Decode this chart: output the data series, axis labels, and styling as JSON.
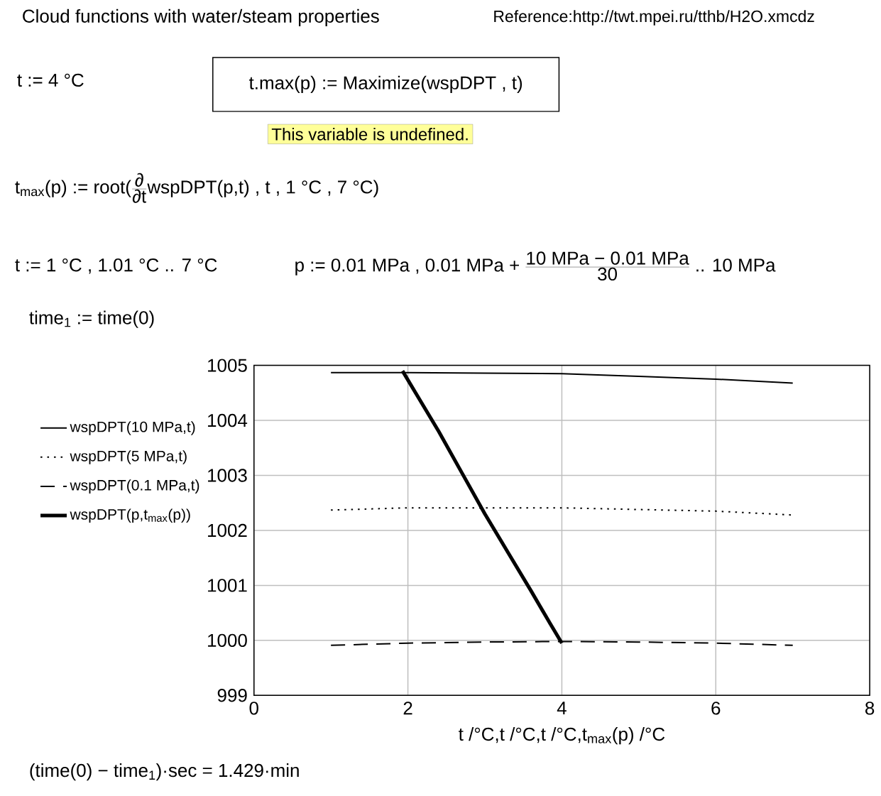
{
  "chart_data": {
    "type": "line",
    "title": "Cloud functions with water/steam properties",
    "xlabel": "t /°C,t /°C,t /°C,t$_{max}$(p) /°C",
    "xlim": [
      0,
      8
    ],
    "xticks": [
      0,
      2,
      4,
      6,
      8
    ],
    "ylim": [
      999,
      1005
    ],
    "yticks": [
      999,
      1000,
      1001,
      1002,
      1003,
      1004,
      1005
    ],
    "grid": true,
    "legend": "left",
    "series": [
      {
        "name": "wspDPT(10 MPa,t)",
        "color": "#000000",
        "line_style": "solid",
        "x": [
          1,
          2,
          3,
          4,
          5,
          6,
          7
        ],
        "values": [
          1004.87,
          1004.87,
          1004.86,
          1004.85,
          1004.8,
          1004.75,
          1004.68
        ]
      },
      {
        "name": "wspDPT(5 MPa,t)",
        "color": "#000000",
        "line_style": "dotted",
        "x": [
          1,
          2,
          3,
          4,
          5,
          6,
          7
        ],
        "values": [
          1002.37,
          1002.41,
          1002.41,
          1002.41,
          1002.38,
          1002.35,
          1002.28
        ]
      },
      {
        "name": "wspDPT(0.1 MPa,t)",
        "color": "#000000",
        "line_style": "dashed",
        "x": [
          1,
          2,
          3,
          4,
          5,
          6,
          7
        ],
        "values": [
          999.91,
          999.95,
          999.97,
          999.98,
          999.97,
          999.95,
          999.91
        ]
      },
      {
        "name": "wspDPT(p,t$_{max}$(p))",
        "color": "#000000",
        "line_style": "solid",
        "x": [
          1.93,
          2.1,
          2.4,
          2.7,
          3.0,
          3.3,
          3.6,
          3.85,
          4.0
        ],
        "values": [
          1004.9,
          1004.5,
          1003.8,
          1003.05,
          1002.3,
          1001.6,
          1000.9,
          1000.3,
          999.95
        ]
      }
    ],
    "annotations": [
      "Reference:http://twt.mpei.ru/tthb/H2O.xmcdz",
      "t := 4 °C",
      "t.max(p) := Maximize(wspDPT , t)",
      "This variable is undefined.",
      "t$_{max}$(p) := root(",
      "∂",
      "∂t",
      "wspDPT(p,t) , t , 1 °C , 7 °C)",
      "t := 1 °C , 1.01 °C .. 7 °C",
      "p := 0.01 MPa , 0.01 MPa +",
      "10 MPa − 0.01 MPa",
      "30",
      ".. 10 MPa",
      "time$_{1}$ := time(0)",
      "(time(0) − time$_{1}$)·sec = 1.429·min"
    ]
  }
}
